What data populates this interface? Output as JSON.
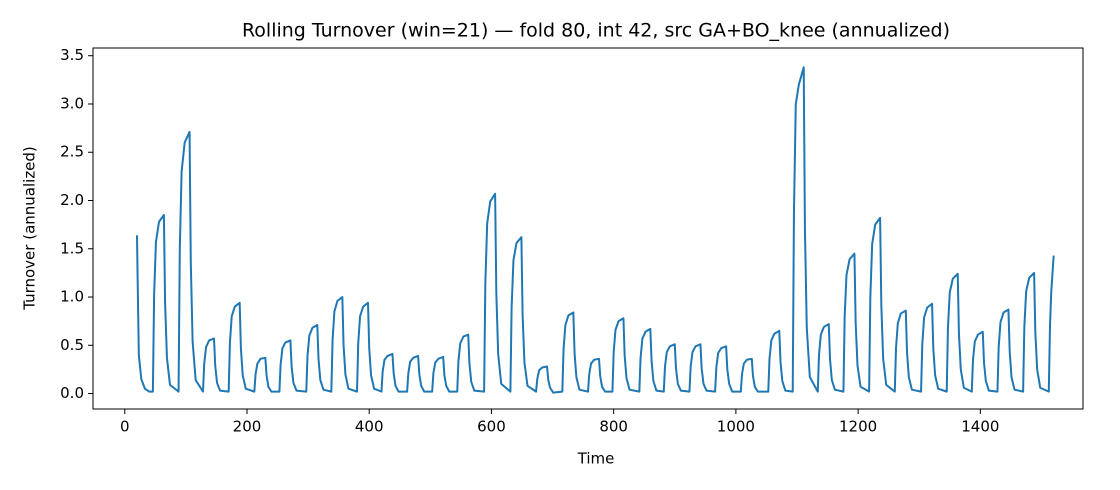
{
  "chart_data": {
    "type": "line",
    "title": "Rolling Turnover (win=21) — fold 80, int 42, src GA+BO_knee (annualized)",
    "xlabel": "Time",
    "ylabel": "Turnover (annualized)",
    "xlim": [
      -52,
      1568
    ],
    "ylim": [
      -0.16,
      3.58
    ],
    "xticks": [
      0,
      200,
      400,
      600,
      800,
      1000,
      1200,
      1400
    ],
    "yticks": [
      {
        "value": 0,
        "label": "0.0"
      },
      0.5,
      {
        "value": 1,
        "label": "1.0"
      },
      1.5,
      {
        "value": 2,
        "label": "2.0"
      },
      2.5,
      {
        "value": 3,
        "label": "3.0"
      },
      3.5
    ],
    "grid": false,
    "x": [
      20,
      21,
      23,
      27,
      33,
      40,
      46,
      48,
      51,
      56,
      64,
      66,
      69,
      74,
      88,
      90,
      93,
      98,
      106,
      108,
      111,
      116,
      128,
      130,
      133,
      138,
      146,
      148,
      151,
      156,
      170,
      172,
      175,
      180,
      188,
      190,
      193,
      198,
      212,
      214,
      217,
      222,
      230,
      232,
      235,
      240,
      253,
      255,
      258,
      263,
      271,
      273,
      276,
      281,
      297,
      299,
      302,
      307,
      315,
      317,
      320,
      325,
      338,
      340,
      343,
      348,
      356,
      358,
      361,
      366,
      380,
      382,
      385,
      390,
      398,
      400,
      403,
      408,
      420,
      422,
      425,
      430,
      438,
      440,
      443,
      448,
      462,
      464,
      467,
      472,
      480,
      482,
      485,
      490,
      503,
      505,
      508,
      513,
      521,
      523,
      526,
      531,
      544,
      546,
      549,
      554,
      562,
      564,
      567,
      572,
      588,
      590,
      593,
      598,
      606,
      608,
      611,
      616,
      631,
      633,
      636,
      641,
      649,
      651,
      654,
      659,
      673,
      675,
      678,
      683,
      691,
      693,
      696,
      701,
      716,
      718,
      721,
      726,
      734,
      736,
      739,
      744,
      758,
      760,
      763,
      768,
      776,
      778,
      781,
      786,
      798,
      800,
      803,
      808,
      816,
      818,
      821,
      826,
      842,
      844,
      847,
      852,
      860,
      862,
      865,
      870,
      882,
      884,
      887,
      892,
      900,
      902,
      905,
      910,
      924,
      926,
      929,
      934,
      942,
      944,
      947,
      952,
      966,
      968,
      971,
      976,
      984,
      986,
      989,
      994,
      1008,
      1010,
      1013,
      1018,
      1026,
      1028,
      1031,
      1036,
      1053,
      1055,
      1058,
      1063,
      1071,
      1073,
      1076,
      1081,
      1093,
      1095,
      1098,
      1103,
      1111,
      1113,
      1116,
      1121,
      1134,
      1136,
      1139,
      1144,
      1152,
      1154,
      1157,
      1162,
      1176,
      1178,
      1181,
      1186,
      1194,
      1196,
      1199,
      1204,
      1218,
      1220,
      1223,
      1228,
      1236,
      1238,
      1241,
      1246,
      1260,
      1262,
      1265,
      1270,
      1278,
      1280,
      1283,
      1288,
      1303,
      1305,
      1308,
      1313,
      1321,
      1323,
      1326,
      1331,
      1345,
      1347,
      1350,
      1355,
      1363,
      1365,
      1368,
      1373,
      1386,
      1388,
      1391,
      1396,
      1404,
      1406,
      1409,
      1414,
      1428,
      1430,
      1433,
      1438,
      1446,
      1448,
      1451,
      1456,
      1470,
      1472,
      1475,
      1480,
      1488,
      1490,
      1493,
      1498,
      1512,
      1514,
      1516,
      1520
    ],
    "series": [
      {
        "name": "Turnover",
        "color": "#1f77b4",
        "values": [
          1.64,
          1.2,
          0.4,
          0.15,
          0.05,
          0.02,
          0.02,
          1.02,
          1.57,
          1.78,
          1.85,
          0.93,
          0.37,
          0.09,
          0.02,
          1.49,
          2.3,
          2.6,
          2.71,
          1.36,
          0.54,
          0.14,
          0.02,
          0.31,
          0.48,
          0.55,
          0.57,
          0.29,
          0.11,
          0.03,
          0.02,
          0.52,
          0.8,
          0.9,
          0.94,
          0.47,
          0.19,
          0.05,
          0.02,
          0.2,
          0.31,
          0.36,
          0.37,
          0.19,
          0.07,
          0.02,
          0.02,
          0.3,
          0.47,
          0.53,
          0.55,
          0.28,
          0.11,
          0.03,
          0.02,
          0.39,
          0.6,
          0.68,
          0.71,
          0.36,
          0.14,
          0.04,
          0.02,
          0.55,
          0.85,
          0.96,
          1.0,
          0.5,
          0.2,
          0.05,
          0.02,
          0.52,
          0.8,
          0.9,
          0.94,
          0.47,
          0.19,
          0.05,
          0.02,
          0.23,
          0.35,
          0.39,
          0.41,
          0.21,
          0.08,
          0.02,
          0.02,
          0.21,
          0.33,
          0.37,
          0.39,
          0.2,
          0.08,
          0.02,
          0.02,
          0.21,
          0.32,
          0.36,
          0.38,
          0.19,
          0.08,
          0.02,
          0.02,
          0.34,
          0.52,
          0.59,
          0.61,
          0.31,
          0.12,
          0.03,
          0.02,
          1.14,
          1.76,
          1.99,
          2.07,
          1.04,
          0.41,
          0.1,
          0.02,
          0.89,
          1.38,
          1.56,
          1.62,
          0.81,
          0.32,
          0.08,
          0.02,
          0.15,
          0.24,
          0.27,
          0.28,
          0.14,
          0.06,
          0.01,
          0.02,
          0.46,
          0.71,
          0.81,
          0.84,
          0.42,
          0.17,
          0.04,
          0.02,
          0.2,
          0.31,
          0.35,
          0.36,
          0.18,
          0.07,
          0.02,
          0.02,
          0.43,
          0.66,
          0.75,
          0.78,
          0.39,
          0.16,
          0.04,
          0.02,
          0.37,
          0.57,
          0.64,
          0.67,
          0.34,
          0.13,
          0.03,
          0.02,
          0.28,
          0.43,
          0.49,
          0.51,
          0.26,
          0.1,
          0.03,
          0.02,
          0.28,
          0.43,
          0.49,
          0.51,
          0.26,
          0.1,
          0.03,
          0.02,
          0.27,
          0.42,
          0.47,
          0.49,
          0.25,
          0.1,
          0.02,
          0.02,
          0.2,
          0.31,
          0.35,
          0.36,
          0.18,
          0.07,
          0.02,
          0.02,
          0.36,
          0.55,
          0.62,
          0.65,
          0.33,
          0.13,
          0.03,
          0.02,
          1.86,
          3.0,
          3.2,
          3.38,
          1.69,
          0.68,
          0.17,
          0.02,
          0.4,
          0.61,
          0.69,
          0.72,
          0.36,
          0.14,
          0.04,
          0.02,
          0.8,
          1.23,
          1.39,
          1.45,
          0.73,
          0.29,
          0.07,
          0.02,
          1.0,
          1.55,
          1.75,
          1.82,
          0.91,
          0.36,
          0.09,
          0.02,
          0.47,
          0.73,
          0.83,
          0.86,
          0.43,
          0.17,
          0.04,
          0.02,
          0.51,
          0.79,
          0.89,
          0.93,
          0.47,
          0.19,
          0.05,
          0.02,
          0.68,
          1.05,
          1.19,
          1.24,
          0.62,
          0.25,
          0.06,
          0.02,
          0.35,
          0.54,
          0.61,
          0.64,
          0.32,
          0.13,
          0.03,
          0.02,
          0.48,
          0.74,
          0.84,
          0.87,
          0.44,
          0.17,
          0.04,
          0.02,
          0.69,
          1.06,
          1.2,
          1.25,
          0.63,
          0.25,
          0.06,
          0.02,
          0.7,
          1.05,
          1.43
        ]
      }
    ]
  }
}
